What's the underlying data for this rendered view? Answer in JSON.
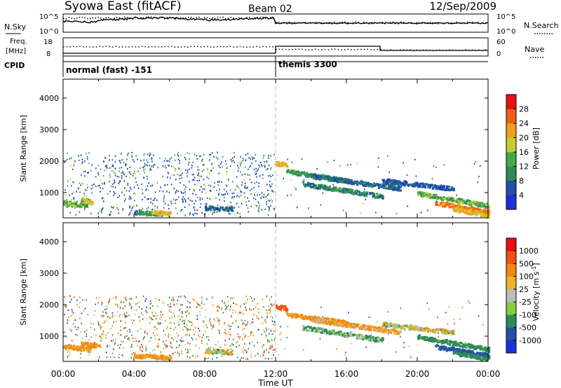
{
  "header": {
    "station": "Syowa East (fitACF)",
    "beam": "Beam 02",
    "date": "12/Sep/2009"
  },
  "noise_panel": {
    "left_label": "N.Sky",
    "right_label": "N.Search",
    "left_ticks": [
      "10^5",
      "10^0"
    ],
    "right_ticks": [
      "10^5",
      "10^0"
    ]
  },
  "freq_panel": {
    "left_label_1": "Freq.",
    "left_label_2": "[MHz]",
    "right_label": "Nave",
    "left_ticks": [
      "18",
      "8"
    ],
    "right_ticks": [
      "60",
      "0"
    ]
  },
  "cpid": {
    "label": "CPID",
    "segments": [
      {
        "name": "normal (fast) -151",
        "start_h": 0,
        "end_h": 12
      },
      {
        "name": "themis 3300",
        "start_h": 12,
        "end_h": 24
      }
    ]
  },
  "colors": {
    "power": [
      "#1f2fd8",
      "#2050a8",
      "#2f8a5a",
      "#48a848",
      "#c8cc30",
      "#f0a020",
      "#f06010",
      "#e81010"
    ],
    "velocity": [
      "#e81010",
      "#f05010",
      "#f08a10",
      "#f0b030",
      "#bcbcbc",
      "#88cc40",
      "#2f8a5a",
      "#2050a8",
      "#1f2fd8"
    ]
  },
  "chart_data": [
    {
      "type": "heatmap",
      "panel": "power",
      "ylabel": "Slant Range [km]",
      "y_ticks": [
        "1000",
        "2000",
        "3000",
        "4000"
      ],
      "ylim": [
        200,
        4600
      ],
      "colorbar_label": "Power [dB]",
      "colorbar_ticks": [
        "4",
        "8",
        "12",
        "16",
        "20",
        "24",
        "28"
      ],
      "colorbar_range": [
        0,
        32
      ],
      "scatter_bands": [
        {
          "t0": 0.0,
          "t1": 2.0,
          "r0": 300,
          "r1": 2300,
          "density": "sparse"
        },
        {
          "t0": 2.0,
          "t1": 12.0,
          "r0": 300,
          "r1": 2300,
          "density": "medium"
        },
        {
          "t0": 12.0,
          "t1": 24.0,
          "r0": 300,
          "r1": 2200,
          "density": "trace"
        }
      ],
      "echo_tracks": [
        {
          "t0": 0.0,
          "t1": 1.3,
          "r0": 700,
          "r1": 600,
          "power": 14
        },
        {
          "t0": 1.0,
          "t1": 1.6,
          "r0": 800,
          "r1": 700,
          "power": 18
        },
        {
          "t0": 4.0,
          "t1": 5.5,
          "r0": 400,
          "r1": 350,
          "power": 10
        },
        {
          "t0": 5.0,
          "t1": 6.0,
          "r0": 400,
          "r1": 350,
          "power": 20
        },
        {
          "t0": 8.0,
          "t1": 9.5,
          "r0": 550,
          "r1": 520,
          "power": 6
        },
        {
          "t0": 12.0,
          "t1": 12.6,
          "r0": 1950,
          "r1": 1900,
          "power": 20
        },
        {
          "t0": 12.6,
          "t1": 16.0,
          "r0": 1700,
          "r1": 1400,
          "power": 12
        },
        {
          "t0": 14.0,
          "t1": 19.0,
          "r0": 1550,
          "r1": 1150,
          "power": 8
        },
        {
          "t0": 13.5,
          "t1": 18.0,
          "r0": 1300,
          "r1": 900,
          "power": 10
        },
        {
          "t0": 18.0,
          "t1": 22.0,
          "r0": 1400,
          "r1": 1150,
          "power": 6
        },
        {
          "t0": 20.0,
          "t1": 24.0,
          "r0": 1000,
          "r1": 600,
          "power": 14
        },
        {
          "t0": 21.0,
          "t1": 24.0,
          "r0": 700,
          "r1": 400,
          "power": 24
        },
        {
          "t0": 22.0,
          "t1": 24.0,
          "r0": 500,
          "r1": 300,
          "power": 20
        }
      ]
    },
    {
      "type": "heatmap",
      "panel": "velocity",
      "ylabel": "Slant Range [km]",
      "y_ticks": [
        "1000",
        "2000",
        "3000",
        "4000"
      ],
      "ylim": [
        200,
        4600
      ],
      "colorbar_label": "Velocity [m s^-1]",
      "colorbar_ticks": [
        "1000",
        "500",
        "100",
        "25",
        "-25",
        "-100",
        "-500",
        "-1000"
      ],
      "colorbar_range": [
        -1000,
        1000
      ],
      "scatter_bands": [
        {
          "t0": 0.0,
          "t1": 2.0,
          "r0": 300,
          "r1": 2300,
          "density": "sparse"
        },
        {
          "t0": 2.0,
          "t1": 12.0,
          "r0": 300,
          "r1": 2300,
          "density": "medium"
        },
        {
          "t0": 12.0,
          "t1": 24.0,
          "r0": 300,
          "r1": 2200,
          "density": "trace"
        }
      ],
      "echo_tracks": [
        {
          "t0": 0.0,
          "t1": 1.5,
          "r0": 700,
          "r1": 600,
          "velocity": -150
        },
        {
          "t0": 1.0,
          "t1": 2.0,
          "r0": 800,
          "r1": 700,
          "velocity": -200
        },
        {
          "t0": 4.0,
          "t1": 6.0,
          "r0": 400,
          "r1": 350,
          "velocity": -150
        },
        {
          "t0": 8.0,
          "t1": 9.5,
          "r0": 550,
          "r1": 520,
          "velocity": 0
        },
        {
          "t0": 12.0,
          "t1": 12.6,
          "r0": 1950,
          "r1": 1900,
          "velocity": -700
        },
        {
          "t0": 12.6,
          "t1": 16.0,
          "r0": 1700,
          "r1": 1450,
          "velocity": -200
        },
        {
          "t0": 14.0,
          "t1": 19.0,
          "r0": 1550,
          "r1": 1150,
          "velocity": -100
        },
        {
          "t0": 13.5,
          "t1": 18.0,
          "r0": 1300,
          "r1": 900,
          "velocity": 100
        },
        {
          "t0": 18.0,
          "t1": 22.0,
          "r0": 1400,
          "r1": 1150,
          "velocity": 0
        },
        {
          "t0": 20.0,
          "t1": 24.0,
          "r0": 1000,
          "r1": 600,
          "velocity": 200
        },
        {
          "t0": 21.0,
          "t1": 24.0,
          "r0": 700,
          "r1": 400,
          "velocity": 600
        },
        {
          "t0": 22.0,
          "t1": 24.0,
          "r0": 500,
          "r1": 300,
          "velocity": 300
        }
      ]
    }
  ],
  "x_axis": {
    "ticks": [
      "00:00",
      "04:00",
      "08:00",
      "12:00",
      "16:00",
      "20:00",
      "00:00"
    ],
    "label": "Time UT"
  }
}
